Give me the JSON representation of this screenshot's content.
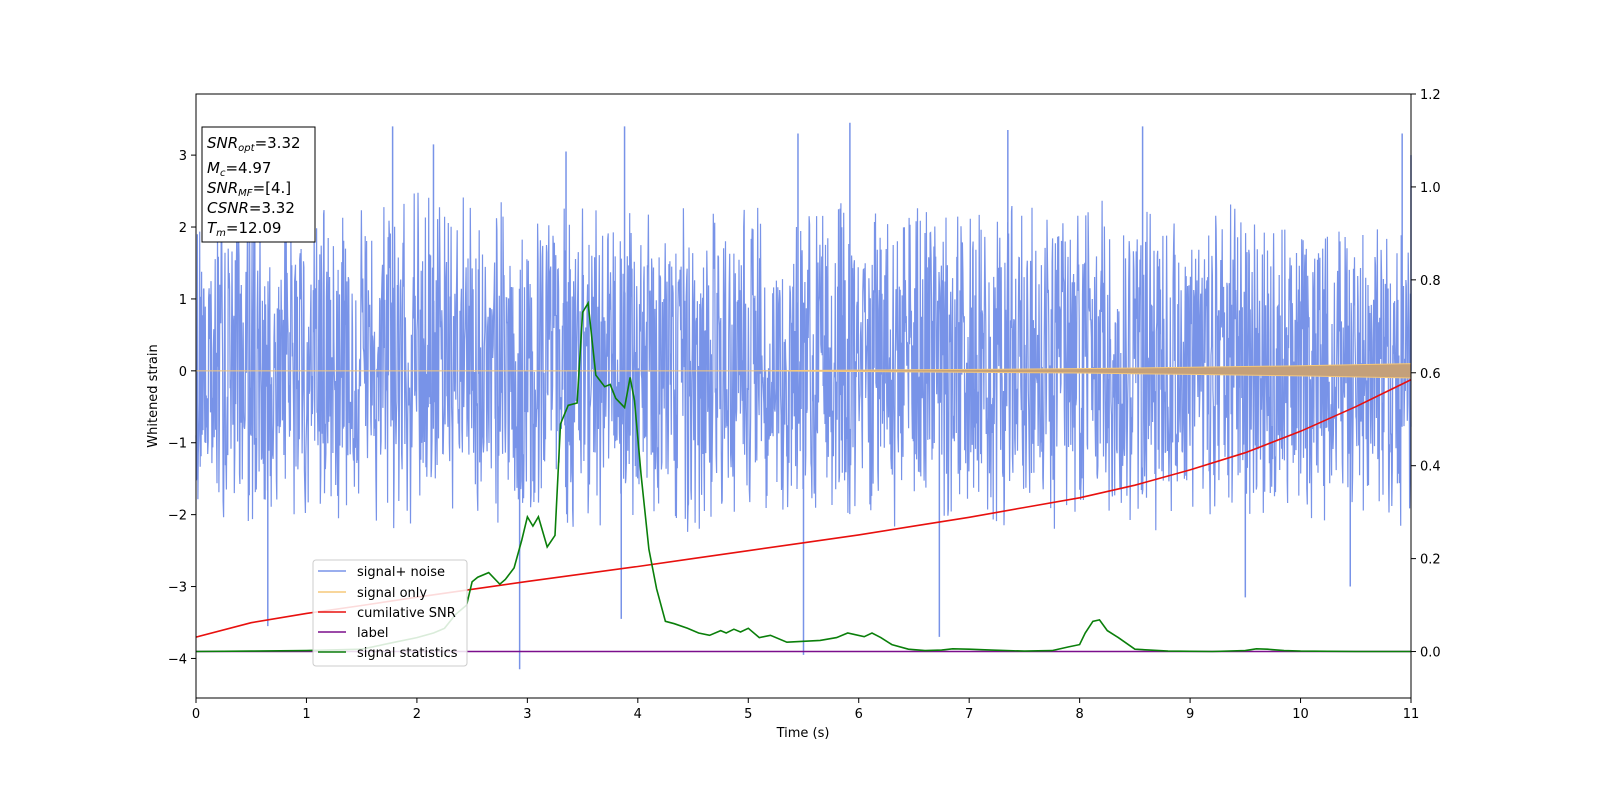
{
  "chart_data": {
    "type": "line",
    "title": "",
    "xlabel": "Time (s)",
    "ylabel": "Whitened strain",
    "xlim": [
      0,
      11
    ],
    "ylim": [
      -4.55,
      3.85
    ],
    "y2lim": [
      -0.1,
      1.2
    ],
    "xticks": [
      "0",
      "1",
      "2",
      "3",
      "4",
      "5",
      "6",
      "7",
      "8",
      "9",
      "10",
      "11"
    ],
    "yticks": [
      "3",
      "2",
      "1",
      "0",
      "−1",
      "−2",
      "−3",
      "−4"
    ],
    "y2ticks": [
      "0.0",
      "0.2",
      "0.4",
      "0.6",
      "0.8",
      "1.0",
      "1.2"
    ],
    "grid": false,
    "legend_position": "lower-left",
    "annotation": {
      "snr_opt": {
        "sym": "SNR",
        "sub": "opt",
        "val": "=3.32"
      },
      "mc": {
        "sym": "M",
        "sub": "c",
        "val": "=4.97"
      },
      "snr_mf": {
        "sym": "SNR",
        "sub": "MF",
        "val": "=[4.]"
      },
      "csnr": {
        "sym": "CSNR",
        "sub": "",
        "val": "=3.32"
      },
      "tm": {
        "sym": "T",
        "sub": "m",
        "val": "=12.09"
      }
    },
    "noise": {
      "name": "signal+ noise",
      "color": "#7893e8",
      "axis": "left",
      "envelope": {
        "x": [
          0,
          1,
          2,
          3,
          4,
          5,
          6,
          7,
          8,
          9,
          10,
          11
        ],
        "upper": [
          2.3,
          2.4,
          2.6,
          2.3,
          2.4,
          2.3,
          2.4,
          2.3,
          2.4,
          2.3,
          2.4,
          2.3
        ],
        "lower": [
          -2.1,
          -2.2,
          -2.3,
          -2.2,
          -2.3,
          -2.2,
          -2.3,
          -2.2,
          -2.3,
          -2.2,
          -2.3,
          -2.2
        ]
      },
      "spikes": [
        {
          "x": 0.65,
          "y": -3.55
        },
        {
          "x": 1.78,
          "y": 3.4
        },
        {
          "x": 2.15,
          "y": 3.15
        },
        {
          "x": 2.93,
          "y": -4.15
        },
        {
          "x": 3.35,
          "y": 3.05
        },
        {
          "x": 3.88,
          "y": 3.4
        },
        {
          "x": 3.85,
          "y": -3.45
        },
        {
          "x": 5.5,
          "y": -3.95
        },
        {
          "x": 5.45,
          "y": 3.3
        },
        {
          "x": 5.92,
          "y": 3.45
        },
        {
          "x": 6.73,
          "y": -3.7
        },
        {
          "x": 7.35,
          "y": 3.35
        },
        {
          "x": 8.57,
          "y": 3.4
        },
        {
          "x": 9.5,
          "y": -3.15
        },
        {
          "x": 10.45,
          "y": -3.0
        },
        {
          "x": 10.92,
          "y": 3.3
        },
        {
          "x": 11.0,
          "y": 3.0
        }
      ]
    },
    "series": [
      {
        "name": "signal only",
        "color": "#f5c87a",
        "axis": "left",
        "x": [
          0,
          5,
          8,
          9,
          10,
          11
        ],
        "y_upper": [
          0.0,
          0.0,
          0.03,
          0.05,
          0.07,
          0.1
        ],
        "y_lower": [
          0.0,
          0.0,
          -0.03,
          -0.05,
          -0.07,
          -0.1
        ]
      },
      {
        "name": "cumilative SNR",
        "color": "#e8100e",
        "axis": "right",
        "x": [
          0,
          0.5,
          1,
          1.5,
          2,
          2.5,
          3,
          3.5,
          4,
          4.5,
          5,
          5.5,
          6,
          6.5,
          7,
          7.5,
          8,
          8.5,
          9,
          9.5,
          10,
          10.5,
          11
        ],
        "y": [
          0.031,
          0.062,
          0.082,
          0.099,
          0.117,
          0.134,
          0.151,
          0.167,
          0.183,
          0.2,
          0.217,
          0.234,
          0.251,
          0.27,
          0.289,
          0.31,
          0.331,
          0.358,
          0.391,
          0.428,
          0.474,
          0.527,
          0.585
        ]
      },
      {
        "name": "label",
        "color": "#7b0f8c",
        "axis": "right",
        "x": [
          0,
          11
        ],
        "y": [
          0.0,
          0.0
        ]
      },
      {
        "name": "signal statistics",
        "color": "#0a7f0a",
        "axis": "right",
        "x": [
          0,
          0.5,
          1,
          1.5,
          1.8,
          2.0,
          2.15,
          2.25,
          2.35,
          2.45,
          2.5,
          2.55,
          2.65,
          2.75,
          2.8,
          2.88,
          2.95,
          3.0,
          3.05,
          3.1,
          3.18,
          3.25,
          3.3,
          3.37,
          3.45,
          3.5,
          3.55,
          3.62,
          3.7,
          3.75,
          3.8,
          3.88,
          3.93,
          3.97,
          4.03,
          4.1,
          4.17,
          4.25,
          4.33,
          4.45,
          4.55,
          4.65,
          4.75,
          4.8,
          4.87,
          4.93,
          5.0,
          5.1,
          5.2,
          5.35,
          5.5,
          5.65,
          5.8,
          5.9,
          6.05,
          6.12,
          6.2,
          6.3,
          6.45,
          6.6,
          6.75,
          6.85,
          7.0,
          7.2,
          7.5,
          7.75,
          7.9,
          8.0,
          8.05,
          8.12,
          8.18,
          8.25,
          8.35,
          8.5,
          8.8,
          9.2,
          9.5,
          9.6,
          9.7,
          9.85,
          10.0,
          10.5,
          11
        ],
        "y": [
          0.0,
          0.001,
          0.002,
          0.005,
          0.02,
          0.03,
          0.04,
          0.05,
          0.08,
          0.1,
          0.15,
          0.16,
          0.17,
          0.145,
          0.155,
          0.18,
          0.24,
          0.29,
          0.27,
          0.29,
          0.225,
          0.25,
          0.49,
          0.53,
          0.535,
          0.73,
          0.75,
          0.595,
          0.57,
          0.575,
          0.545,
          0.525,
          0.59,
          0.54,
          0.38,
          0.22,
          0.135,
          0.065,
          0.06,
          0.05,
          0.04,
          0.035,
          0.045,
          0.04,
          0.048,
          0.042,
          0.05,
          0.03,
          0.035,
          0.02,
          0.022,
          0.024,
          0.03,
          0.04,
          0.032,
          0.04,
          0.03,
          0.015,
          0.005,
          0.002,
          0.003,
          0.006,
          0.005,
          0.003,
          0.001,
          0.002,
          0.01,
          0.015,
          0.04,
          0.065,
          0.068,
          0.045,
          0.03,
          0.005,
          0.001,
          0.0,
          0.002,
          0.006,
          0.005,
          0.002,
          0.001,
          0.0,
          0.0
        ]
      }
    ]
  }
}
